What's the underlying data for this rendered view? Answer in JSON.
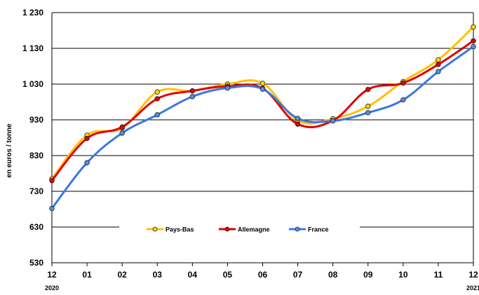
{
  "chart_data": {
    "type": "line",
    "title": "",
    "xlabel": "",
    "ylabel": "en euros / tonne",
    "categories": [
      "12",
      "01",
      "02",
      "03",
      "04",
      "05",
      "06",
      "07",
      "08",
      "09",
      "10",
      "11",
      "12"
    ],
    "year_labels": [
      {
        "index": 0,
        "label": "2020"
      },
      {
        "index": 12,
        "label": "2021"
      }
    ],
    "yticks": [
      530,
      630,
      730,
      830,
      930,
      1030,
      1130,
      1230
    ],
    "ytick_labels": [
      "530",
      "630",
      "730",
      "830",
      "930",
      "1 030",
      "1 130",
      "1 230"
    ],
    "ylim": [
      530,
      1230
    ],
    "grid": true,
    "legend_position": "bottom-center",
    "series": [
      {
        "name": "Pays-Bas",
        "color": "#FFC000",
        "marker": "#FFD700",
        "values": [
          765,
          887,
          907,
          1008,
          1011,
          1030,
          1032,
          928,
          933,
          968,
          1037,
          1098,
          1190
        ]
      },
      {
        "name": "Allemagne",
        "color": "#E00000",
        "marker": "#E00000",
        "values": [
          760,
          878,
          910,
          989,
          1011,
          1024,
          1018,
          918,
          928,
          1015,
          1033,
          1085,
          1151
        ]
      },
      {
        "name": "France",
        "color": "#3C78E0",
        "marker": "#5A8CE6",
        "values": [
          682,
          810,
          893,
          944,
          995,
          1019,
          1016,
          934,
          927,
          950,
          986,
          1065,
          1135
        ]
      }
    ]
  }
}
